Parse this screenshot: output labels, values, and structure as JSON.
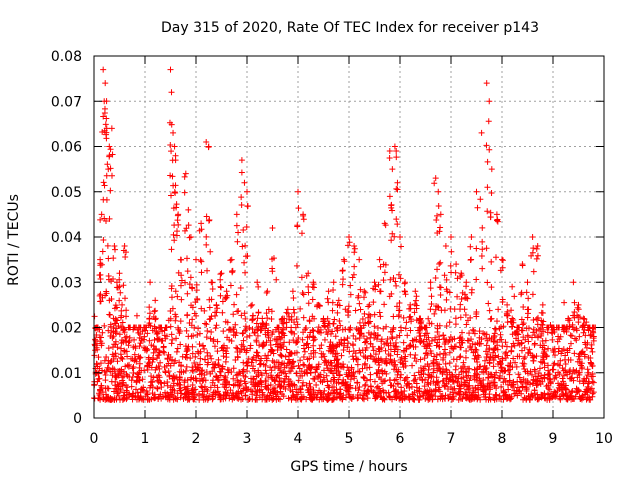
{
  "chart_data": {
    "type": "scatter",
    "title": "Day 315 of 2020, Rate Of TEC Index for receiver p143",
    "xlabel": "GPS time / hours",
    "ylabel": "ROTI / TECUs",
    "xlim": [
      0,
      10
    ],
    "ylim": [
      0,
      0.08
    ],
    "xticks": [
      0,
      1,
      2,
      3,
      4,
      5,
      6,
      7,
      8,
      9,
      10
    ],
    "xtick_labels": [
      "0",
      "1",
      "2",
      "3",
      "4",
      "5",
      "6",
      "7",
      "8",
      "9",
      "10"
    ],
    "yticks": [
      0,
      0.01,
      0.02,
      0.03,
      0.04,
      0.05,
      0.06,
      0.07,
      0.08
    ],
    "ytick_labels": [
      "0",
      "0.01",
      "0.02",
      "0.03",
      "0.04",
      "0.05",
      "0.06",
      "0.07",
      "0.08"
    ],
    "grid": true,
    "marker": "+",
    "color": "#ff0000",
    "series": [
      {
        "name": "ROTI",
        "x": [
          0.05,
          0.12,
          0.15,
          0.18,
          0.2,
          0.22,
          0.25,
          0.28,
          0.3,
          0.35,
          0.4,
          0.45,
          0.5,
          0.55,
          0.6,
          0.7,
          0.8,
          0.9,
          1.0,
          1.1,
          1.2,
          1.3,
          1.4,
          1.5,
          1.52,
          1.55,
          1.58,
          1.6,
          1.65,
          1.7,
          1.8,
          1.85,
          1.9,
          2.0,
          2.1,
          2.2,
          2.25,
          2.3,
          2.4,
          2.5,
          2.6,
          2.7,
          2.8,
          2.9,
          2.95,
          3.0,
          3.1,
          3.2,
          3.3,
          3.4,
          3.5,
          3.6,
          3.7,
          3.8,
          3.9,
          4.0,
          4.1,
          4.2,
          4.3,
          4.4,
          4.5,
          4.6,
          4.7,
          4.8,
          4.9,
          5.0,
          5.1,
          5.2,
          5.3,
          5.4,
          5.5,
          5.6,
          5.7,
          5.8,
          5.85,
          5.9,
          5.95,
          6.0,
          6.1,
          6.2,
          6.3,
          6.4,
          6.5,
          6.6,
          6.7,
          6.75,
          6.8,
          6.9,
          7.0,
          7.1,
          7.2,
          7.3,
          7.4,
          7.5,
          7.6,
          7.7,
          7.75,
          7.8,
          7.9,
          8.0,
          8.1,
          8.2,
          8.3,
          8.4,
          8.5,
          8.6,
          8.7,
          8.8,
          8.9,
          9.0,
          9.1,
          9.2,
          9.3,
          9.4,
          9.5,
          9.6,
          9.7,
          9.8
        ],
        "values": [
          0.012,
          0.035,
          0.045,
          0.077,
          0.07,
          0.074,
          0.064,
          0.055,
          0.06,
          0.064,
          0.038,
          0.03,
          0.032,
          0.025,
          0.038,
          0.02,
          0.014,
          0.012,
          0.015,
          0.03,
          0.026,
          0.02,
          0.02,
          0.077,
          0.072,
          0.063,
          0.06,
          0.057,
          0.045,
          0.035,
          0.054,
          0.046,
          0.04,
          0.035,
          0.043,
          0.061,
          0.06,
          0.03,
          0.025,
          0.032,
          0.028,
          0.035,
          0.045,
          0.057,
          0.052,
          0.05,
          0.025,
          0.03,
          0.022,
          0.028,
          0.042,
          0.02,
          0.022,
          0.024,
          0.028,
          0.05,
          0.045,
          0.032,
          0.03,
          0.025,
          0.022,
          0.028,
          0.03,
          0.026,
          0.035,
          0.04,
          0.038,
          0.035,
          0.028,
          0.025,
          0.03,
          0.035,
          0.043,
          0.059,
          0.055,
          0.06,
          0.052,
          0.04,
          0.03,
          0.025,
          0.028,
          0.022,
          0.02,
          0.03,
          0.053,
          0.05,
          0.045,
          0.038,
          0.04,
          0.034,
          0.032,
          0.03,
          0.04,
          0.05,
          0.063,
          0.074,
          0.07,
          0.055,
          0.045,
          0.035,
          0.025,
          0.022,
          0.02,
          0.034,
          0.03,
          0.04,
          0.038,
          0.025,
          0.02,
          0.015,
          0.018,
          0.02,
          0.022,
          0.03,
          0.025,
          0.022,
          0.02,
          0.018
        ]
      }
    ],
    "background_band": {
      "description_values": "dense cluster between 0.005 and 0.02 across entire range",
      "y_low": 0.004,
      "y_high": 0.02
    }
  }
}
